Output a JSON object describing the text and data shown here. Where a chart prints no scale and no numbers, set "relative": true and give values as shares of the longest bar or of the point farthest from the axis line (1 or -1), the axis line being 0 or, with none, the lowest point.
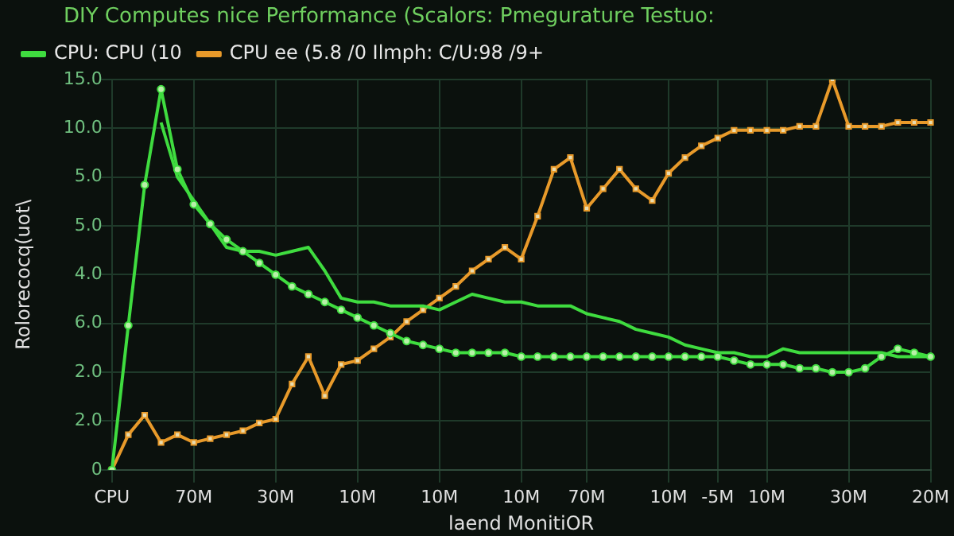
{
  "chart_data": {
    "type": "line",
    "title": "DIY Computes nice Performance (Scalors: Pmegurature Testuo:",
    "xlabel": "laend MonitiOR",
    "ylabel": "Rolorecocq(uot\\",
    "relative": true,
    "annotations": [
      "15.0",
      "10.0",
      "5.0",
      "5.0",
      "4.0",
      "6.0",
      "2.0",
      "2.0",
      "0"
    ],
    "categories": [
      "CPU",
      null,
      null,
      null,
      null,
      "70M",
      null,
      null,
      null,
      null,
      "30M",
      null,
      null,
      null,
      null,
      "10M",
      null,
      null,
      null,
      null,
      "10M",
      null,
      null,
      null,
      null,
      "10M",
      null,
      null,
      null,
      "70M",
      null,
      null,
      null,
      null,
      "10M",
      null,
      null,
      "-5M",
      null,
      null,
      "10M",
      null,
      null,
      null,
      null,
      "30M",
      null,
      null,
      null,
      null,
      "20M"
    ],
    "grid": true,
    "legend": "top left",
    "line_style": "solid",
    "series": [
      {
        "name": "CPU: CPU (10",
        "color": "#3fdc3f",
        "marker": "circle",
        "values": [
          0,
          0.37,
          0.73,
          0.975,
          0.77,
          0.68,
          0.63,
          0.59,
          0.56,
          0.53,
          0.5,
          0.47,
          0.45,
          0.43,
          0.41,
          0.39,
          0.37,
          0.35,
          0.33,
          0.32,
          0.31,
          0.3,
          0.3,
          0.3,
          0.3,
          0.29,
          0.29,
          0.29,
          0.29,
          0.29,
          0.29,
          0.29,
          0.29,
          0.29,
          0.29,
          0.29,
          0.29,
          0.29,
          0.28,
          0.27,
          0.27,
          0.27,
          0.26,
          0.26,
          0.25,
          0.25,
          0.26,
          0.29,
          0.31,
          0.3,
          0.29
        ]
      },
      {
        "color": "#3fdc3f",
        "marker": "none",
        "values": [
          null,
          null,
          null,
          0.89,
          0.75,
          0.69,
          0.63,
          0.57,
          0.56,
          0.56,
          0.55,
          0.56,
          0.57,
          0.51,
          0.44,
          0.43,
          0.43,
          0.42,
          0.42,
          0.42,
          0.41,
          0.43,
          0.45,
          0.44,
          0.43,
          0.43,
          0.42,
          0.42,
          0.42,
          0.4,
          0.39,
          0.38,
          0.36,
          0.35,
          0.34,
          0.32,
          0.31,
          0.3,
          0.3,
          0.29,
          0.29,
          0.31,
          0.3,
          0.3,
          0.3,
          0.3,
          0.3,
          0.3,
          0.29,
          0.29,
          0.29
        ]
      },
      {
        "name": "CPU ee (5.8 /0 Ilmph: C/U:98 /9+",
        "color": "#e89a2a",
        "marker": "square",
        "values": [
          0,
          0.09,
          0.14,
          0.07,
          0.09,
          0.07,
          0.08,
          0.09,
          0.1,
          0.12,
          0.13,
          0.22,
          0.29,
          0.19,
          0.27,
          0.28,
          0.31,
          0.34,
          0.38,
          0.41,
          0.44,
          0.47,
          0.51,
          0.54,
          0.57,
          0.54,
          0.65,
          0.77,
          0.8,
          0.67,
          0.72,
          0.77,
          0.72,
          0.69,
          0.76,
          0.8,
          0.83,
          0.85,
          0.87,
          0.87,
          0.87,
          0.87,
          0.88,
          0.88,
          1,
          0.88,
          0.88,
          0.88,
          0.89,
          0.89,
          0.89
        ]
      }
    ]
  }
}
